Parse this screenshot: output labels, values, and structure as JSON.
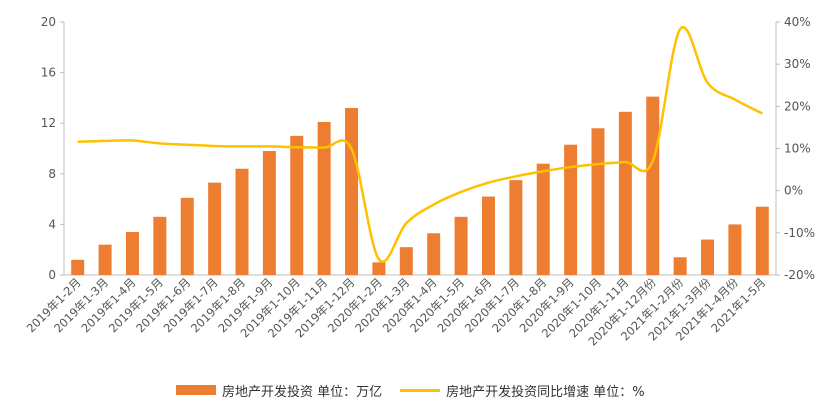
{
  "chart_data": {
    "type": "bar+line",
    "categories": [
      "2019年1-2月",
      "2019年1-3月",
      "2019年1-4月",
      "2019年1-5月",
      "2019年1-6月",
      "2019年1-7月",
      "2019年1-8月",
      "2019年1-9月",
      "2019年1-10月",
      "2019年1-11月",
      "2019年1-12月",
      "2020年1-2月",
      "2020年1-3月",
      "2020年1-4月",
      "2020年1-5月",
      "2020年1-6月",
      "2020年1-7月",
      "2020年1-8月",
      "2020年1-9月",
      "2020年1-10月",
      "2020年1-11月",
      "2020年1-12月份",
      "2021年1-2月份",
      "2021年1-3月份",
      "2021年1-4月份",
      "2021年1-5月"
    ],
    "series": [
      {
        "name": "房地产开发投资 单位：万亿",
        "type": "bar",
        "axis": "left",
        "color": "#ED7D31",
        "values": [
          1.2,
          2.4,
          3.4,
          4.6,
          6.1,
          7.3,
          8.4,
          9.8,
          11.0,
          12.1,
          13.2,
          1.0,
          2.2,
          3.3,
          4.6,
          6.2,
          7.5,
          8.8,
          10.3,
          11.6,
          12.9,
          14.1,
          1.4,
          2.8,
          4.0,
          5.4
        ]
      },
      {
        "name": "房地产开发投资同比增速 单位：%",
        "type": "line",
        "axis": "right",
        "color": "#FFC000",
        "values": [
          11.6,
          11.8,
          11.9,
          11.2,
          10.9,
          10.6,
          10.5,
          10.5,
          10.3,
          10.2,
          9.9,
          -16.3,
          -7.7,
          -3.3,
          -0.3,
          1.9,
          3.4,
          4.6,
          5.6,
          6.3,
          6.8,
          7.0,
          38.3,
          25.6,
          21.6,
          18.3
        ]
      }
    ],
    "left_axis": {
      "min": 0,
      "max": 20,
      "ticks": [
        "0",
        "4",
        "8",
        "12",
        "16",
        "20"
      ]
    },
    "right_axis": {
      "min": -20,
      "max": 40,
      "ticks": [
        "-20%",
        "-10%",
        "0%",
        "10%",
        "20%",
        "30%",
        "40%"
      ]
    },
    "grid": false,
    "legend_position": "bottom"
  }
}
